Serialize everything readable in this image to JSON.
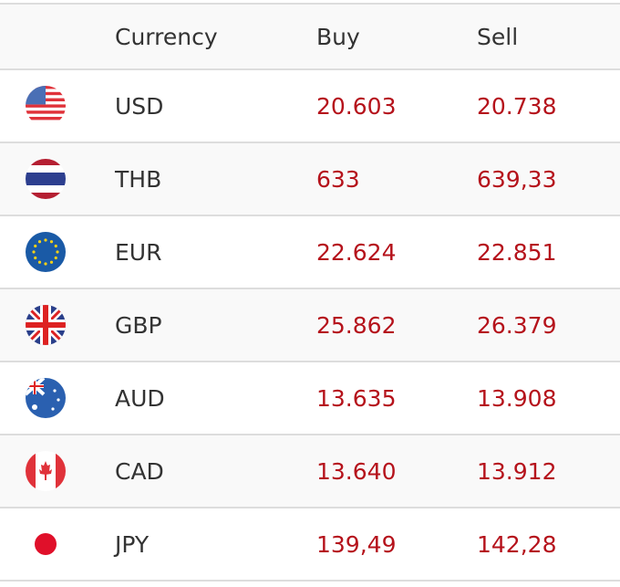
{
  "header": {
    "currency": "Currency",
    "buy": "Buy",
    "sell": "Sell"
  },
  "colors": {
    "rate_text": "#b5121b",
    "border": "#dddddd",
    "stripe": "#f9f9f9"
  },
  "rows": [
    {
      "flag": "us-flag-icon",
      "currency": "USD",
      "buy": "20.603",
      "sell": "20.738"
    },
    {
      "flag": "thailand-flag-icon",
      "currency": "THB",
      "buy": "633",
      "sell": "639,33"
    },
    {
      "flag": "eu-flag-icon",
      "currency": "EUR",
      "buy": "22.624",
      "sell": "22.851"
    },
    {
      "flag": "uk-flag-icon",
      "currency": "GBP",
      "buy": "25.862",
      "sell": "26.379"
    },
    {
      "flag": "australia-flag-icon",
      "currency": "AUD",
      "buy": "13.635",
      "sell": "13.908"
    },
    {
      "flag": "canada-flag-icon",
      "currency": "CAD",
      "buy": "13.640",
      "sell": "13.912"
    },
    {
      "flag": "japan-flag-icon",
      "currency": "JPY",
      "buy": "139,49",
      "sell": "142,28"
    }
  ]
}
